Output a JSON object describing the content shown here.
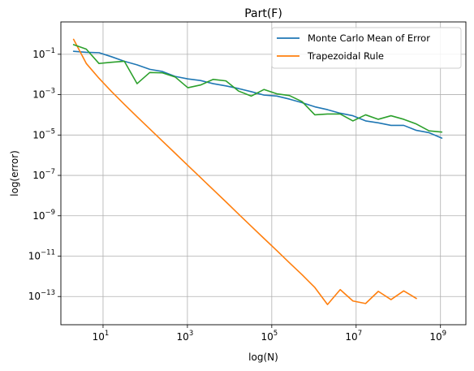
{
  "chart_data": {
    "type": "line",
    "title": "Part(F)",
    "xlabel": "log(N)",
    "ylabel": "log(error)",
    "xscale": "log",
    "yscale": "log",
    "xlim": [
      1.0,
      4000000000.0
    ],
    "ylim": [
      4e-15,
      4.0
    ],
    "grid": true,
    "legend_position": "top-right",
    "x_ticks": [
      {
        "base": "10",
        "exp": "1",
        "value": 10
      },
      {
        "base": "10",
        "exp": "3",
        "value": 1000
      },
      {
        "base": "10",
        "exp": "5",
        "value": 100000
      },
      {
        "base": "10",
        "exp": "7",
        "value": 10000000
      },
      {
        "base": "10",
        "exp": "9",
        "value": 1000000000
      }
    ],
    "y_ticks": [
      {
        "base": "10",
        "exp": "−13",
        "value": 1e-13
      },
      {
        "base": "10",
        "exp": "−11",
        "value": 1e-11
      },
      {
        "base": "10",
        "exp": "−9",
        "value": 1e-09
      },
      {
        "base": "10",
        "exp": "−7",
        "value": 1e-07
      },
      {
        "base": "10",
        "exp": "−5",
        "value": 1e-05
      },
      {
        "base": "10",
        "exp": "−3",
        "value": 0.001
      },
      {
        "base": "10",
        "exp": "−1",
        "value": 0.1
      }
    ],
    "series": [
      {
        "name": "Monte Carlo Mean of Error",
        "color": "#1f77b4",
        "in_legend": true,
        "x": [
          2,
          4,
          8,
          16,
          32,
          64,
          128,
          256,
          512,
          1024,
          2048,
          4096,
          8192,
          16384,
          32768,
          65536,
          131072,
          262144,
          524288,
          1048576,
          2097152,
          4194304,
          8388608,
          16777216,
          33554432,
          67108864,
          134217728,
          268435456,
          536870912,
          1073741824
        ],
        "y": [
          0.14,
          0.125,
          0.12,
          0.075,
          0.045,
          0.03,
          0.018,
          0.014,
          0.008,
          0.006,
          0.005,
          0.0035,
          0.0027,
          0.002,
          0.0014,
          0.00095,
          0.00085,
          0.0006,
          0.0004,
          0.00025,
          0.00018,
          0.00012,
          9e-05,
          5e-05,
          4e-05,
          3e-05,
          3e-05,
          1.7e-05,
          1.3e-05,
          7e-06
        ]
      },
      {
        "name": "Trapezoidal Rule",
        "color": "#ff7f0e",
        "in_legend": true,
        "x": [
          2,
          4,
          8,
          16,
          32,
          64,
          128,
          256,
          512,
          1024,
          2048,
          4096,
          8192,
          16384,
          32768,
          65536,
          131072,
          262144,
          524288,
          1048576,
          2097152,
          4194304,
          8388608,
          16777216,
          33554432,
          67108864,
          134217728,
          268435456
        ],
        "y": [
          0.55,
          0.035,
          0.0065,
          0.0014,
          0.00033,
          8e-05,
          2e-05,
          5e-06,
          1.25e-06,
          3.1e-07,
          7.8e-08,
          1.95e-08,
          4.9e-09,
          1.2e-09,
          3e-10,
          7.5e-11,
          1.9e-11,
          4.7e-12,
          1.2e-12,
          2.8e-13,
          4e-14,
          2.2e-13,
          6e-14,
          4.5e-14,
          1.8e-13,
          7e-14,
          1.9e-13,
          8e-14
        ]
      },
      {
        "name": "",
        "color": "#2ca02c",
        "in_legend": false,
        "x": [
          2,
          4,
          8,
          16,
          32,
          64,
          128,
          256,
          512,
          1024,
          2048,
          4096,
          8192,
          16384,
          32768,
          65536,
          131072,
          262144,
          524288,
          1048576,
          2097152,
          4194304,
          8388608,
          16777216,
          33554432,
          67108864,
          134217728,
          268435456,
          536870912,
          1073741824
        ],
        "y": [
          0.3,
          0.18,
          0.035,
          0.04,
          0.045,
          0.0035,
          0.0125,
          0.012,
          0.0075,
          0.0022,
          0.003,
          0.0057,
          0.0048,
          0.0015,
          0.00085,
          0.0018,
          0.0011,
          0.0009,
          0.00045,
          0.0001,
          0.00011,
          0.00011,
          5e-05,
          0.0001,
          6e-05,
          9e-05,
          6e-05,
          3.5e-05,
          1.6e-05,
          1.4e-05
        ]
      }
    ]
  }
}
